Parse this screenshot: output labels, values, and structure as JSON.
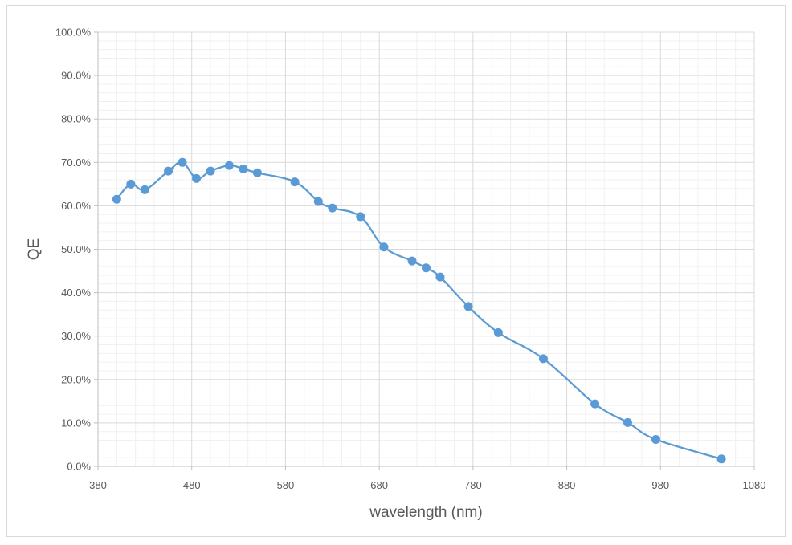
{
  "chart_data": {
    "type": "scatter",
    "title": "",
    "xlabel": "wavelength (nm)",
    "ylabel": "QE",
    "xlim": [
      380,
      1080
    ],
    "ylim": [
      0,
      100
    ],
    "x_ticks": [
      "380",
      "480",
      "580",
      "680",
      "780",
      "880",
      "980",
      "1080"
    ],
    "y_ticks": [
      "0.0%",
      "10.0%",
      "20.0%",
      "30.0%",
      "40.0%",
      "50.0%",
      "60.0%",
      "70.0%",
      "80.0%",
      "90.0%",
      "100.0%"
    ],
    "grid": true,
    "legend": "none",
    "line_color": "#5b9bd5",
    "series": [
      {
        "x": [
          400,
          415,
          430,
          455,
          470,
          485,
          500,
          520,
          535,
          550,
          590,
          615,
          630,
          660,
          685,
          715,
          730,
          745,
          775,
          807,
          855,
          910,
          945,
          975,
          1045
        ],
        "y": [
          61.5,
          65.0,
          63.7,
          68.0,
          70.0,
          66.3,
          68.0,
          69.3,
          68.5,
          67.6,
          65.5,
          61.0,
          59.5,
          57.5,
          50.5,
          47.3,
          45.7,
          43.6,
          36.8,
          30.8,
          24.8,
          14.4,
          10.1,
          6.2,
          1.7
        ]
      }
    ]
  }
}
